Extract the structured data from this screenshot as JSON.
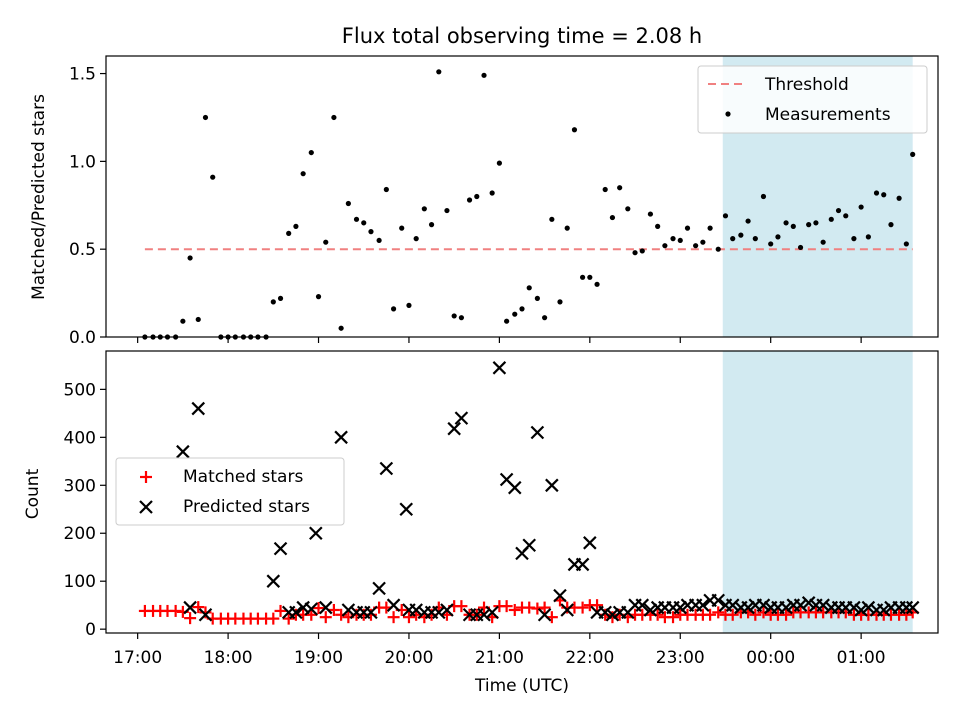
{
  "title": "Flux total observing time = 2.08 h",
  "shade_color": "#add8e6",
  "chart_data": [
    {
      "type": "scatter",
      "name": "ratio-panel",
      "ylabel": "Matched/Predicted stars",
      "xlim": [
        16.65,
        25.85
      ],
      "ylim": [
        0,
        1.6
      ],
      "yticks": [
        0.0,
        0.5,
        1.0,
        1.5
      ],
      "ytick_labels": [
        "0.0",
        "0.5",
        "1.0",
        "1.5"
      ],
      "shaded_region": [
        23.47,
        25.57
      ],
      "threshold": {
        "label": "Threshold",
        "value": 0.5,
        "x_range": [
          17.08,
          25.57
        ],
        "color": "#f08080"
      },
      "legend": {
        "location": "upper right",
        "entries": [
          "Threshold",
          "Measurements"
        ]
      },
      "series": [
        {
          "name": "Measurements",
          "color": "#000000",
          "x": [
            17.08,
            17.17,
            17.25,
            17.33,
            17.42,
            17.5,
            17.58,
            17.67,
            17.75,
            17.83,
            17.92,
            18.0,
            18.08,
            18.17,
            18.25,
            18.33,
            18.42,
            18.5,
            18.58,
            18.67,
            18.75,
            18.83,
            18.92,
            19.0,
            19.08,
            19.17,
            19.25,
            19.33,
            19.42,
            19.5,
            19.58,
            19.67,
            19.75,
            19.83,
            19.92,
            20.0,
            20.08,
            20.17,
            20.25,
            20.33,
            20.42,
            20.5,
            20.58,
            20.67,
            20.75,
            20.83,
            20.92,
            21.0,
            21.08,
            21.17,
            21.25,
            21.33,
            21.42,
            21.5,
            21.58,
            21.67,
            21.75,
            21.83,
            21.92,
            22.0,
            22.08,
            22.17,
            22.25,
            22.33,
            22.42,
            22.5,
            22.58,
            22.67,
            22.75,
            22.83,
            22.92,
            23.0,
            23.08,
            23.17,
            23.25,
            23.33,
            23.42,
            23.5,
            23.58,
            23.67,
            23.75,
            23.83,
            23.92,
            24.0,
            24.08,
            24.17,
            24.25,
            24.33,
            24.42,
            24.5,
            24.58,
            24.67,
            24.75,
            24.83,
            24.92,
            25.0,
            25.08,
            25.17,
            25.25,
            25.33,
            25.42,
            25.5,
            25.57
          ],
          "y": [
            0.0,
            0.0,
            0.0,
            0.0,
            0.0,
            0.09,
            0.45,
            0.1,
            1.25,
            0.91,
            0.0,
            0.0,
            0.0,
            0.0,
            0.0,
            0.0,
            0.0,
            0.2,
            0.22,
            0.59,
            0.63,
            0.93,
            1.05,
            0.23,
            0.54,
            1.25,
            0.05,
            0.76,
            0.67,
            0.65,
            0.6,
            0.55,
            0.84,
            0.16,
            0.62,
            0.18,
            0.56,
            0.73,
            0.64,
            1.51,
            0.72,
            0.12,
            0.11,
            0.78,
            0.8,
            1.49,
            0.82,
            0.99,
            0.09,
            0.13,
            0.16,
            0.28,
            0.22,
            0.11,
            0.67,
            0.2,
            0.62,
            1.18,
            0.34,
            0.34,
            0.3,
            0.84,
            0.68,
            0.85,
            0.73,
            0.48,
            0.49,
            0.7,
            0.63,
            0.52,
            0.56,
            0.55,
            0.62,
            0.52,
            0.54,
            0.62,
            0.5,
            0.69,
            0.56,
            0.58,
            0.66,
            0.56,
            0.8,
            0.53,
            0.57,
            0.65,
            0.63,
            0.51,
            0.64,
            0.65,
            0.54,
            0.67,
            0.72,
            0.69,
            0.56,
            0.74,
            0.57,
            0.82,
            0.81,
            0.64,
            0.79,
            0.53,
            1.04
          ]
        }
      ]
    },
    {
      "type": "scatter",
      "name": "count-panel",
      "xlabel": "Time (UTC)",
      "ylabel": "Count",
      "xlim": [
        16.65,
        25.85
      ],
      "ylim": [
        -8,
        580
      ],
      "yticks": [
        0,
        100,
        200,
        300,
        400,
        500
      ],
      "ytick_labels": [
        "0",
        "100",
        "200",
        "300",
        "400",
        "500"
      ],
      "xticks": [
        17,
        18,
        19,
        20,
        21,
        22,
        23,
        24,
        25
      ],
      "xtick_labels": [
        "17:00",
        "18:00",
        "19:00",
        "20:00",
        "21:00",
        "22:00",
        "23:00",
        "00:00",
        "01:00"
      ],
      "shaded_region": [
        23.47,
        25.57
      ],
      "legend": {
        "location": "center left",
        "entries": [
          "Matched stars",
          "Predicted stars"
        ]
      },
      "series": [
        {
          "name": "Matched stars",
          "marker": "+",
          "color": "#ff0000",
          "x": [
            17.08,
            17.17,
            17.25,
            17.33,
            17.42,
            17.5,
            17.58,
            17.67,
            17.75,
            17.83,
            17.92,
            18.0,
            18.08,
            18.17,
            18.25,
            18.33,
            18.42,
            18.5,
            18.58,
            18.67,
            18.75,
            18.83,
            18.92,
            19.0,
            19.08,
            19.17,
            19.25,
            19.33,
            19.42,
            19.5,
            19.58,
            19.67,
            19.75,
            19.83,
            19.92,
            20.0,
            20.08,
            20.17,
            20.25,
            20.33,
            20.42,
            20.5,
            20.58,
            20.67,
            20.75,
            20.83,
            20.92,
            21.0,
            21.08,
            21.17,
            21.25,
            21.33,
            21.42,
            21.5,
            21.58,
            21.67,
            21.75,
            21.83,
            21.92,
            22.0,
            22.08,
            22.17,
            22.25,
            22.33,
            22.42,
            22.5,
            22.58,
            22.67,
            22.75,
            22.83,
            22.92,
            23.0,
            23.08,
            23.17,
            23.25,
            23.33,
            23.42,
            23.5,
            23.58,
            23.67,
            23.75,
            23.83,
            23.92,
            24.0,
            24.08,
            24.17,
            24.25,
            24.33,
            24.42,
            24.5,
            24.58,
            24.67,
            24.75,
            24.83,
            24.92,
            25.0,
            25.08,
            25.17,
            25.25,
            25.33,
            25.42,
            25.5,
            25.57
          ],
          "y": [
            38,
            38,
            38,
            38,
            38,
            36,
            23,
            46,
            35,
            22,
            22,
            22,
            22,
            22,
            22,
            22,
            22,
            22,
            38,
            22,
            30,
            30,
            30,
            44,
            25,
            40,
            30,
            25,
            30,
            30,
            30,
            45,
            45,
            25,
            40,
            25,
            30,
            25,
            30,
            45,
            30,
            48,
            48,
            30,
            30,
            45,
            25,
            48,
            48,
            40,
            45,
            45,
            43,
            45,
            25,
            60,
            45,
            45,
            45,
            50,
            50,
            30,
            25,
            30,
            25,
            30,
            30,
            30,
            30,
            25,
            25,
            30,
            30,
            30,
            30,
            30,
            35,
            30,
            30,
            35,
            35,
            30,
            35,
            30,
            30,
            30,
            35,
            35,
            35,
            35,
            35,
            35,
            35,
            35,
            30,
            30,
            30,
            30,
            30,
            30,
            30,
            30,
            35
          ]
        },
        {
          "name": "Predicted stars",
          "marker": "x",
          "color": "#000000",
          "x": [
            17.5,
            17.58,
            17.67,
            17.75,
            18.5,
            18.58,
            18.67,
            18.75,
            18.83,
            18.92,
            18.97,
            19.08,
            19.25,
            19.33,
            19.42,
            19.5,
            19.58,
            19.67,
            19.75,
            19.83,
            19.97,
            20.0,
            20.08,
            20.17,
            20.25,
            20.33,
            20.42,
            20.5,
            20.58,
            20.67,
            20.75,
            20.83,
            20.92,
            21.0,
            21.08,
            21.17,
            21.25,
            21.33,
            21.42,
            21.5,
            21.58,
            21.67,
            21.75,
            21.83,
            21.92,
            22.0,
            22.08,
            22.17,
            22.25,
            22.33,
            22.42,
            22.5,
            22.58,
            22.67,
            22.75,
            22.83,
            22.92,
            23.0,
            23.08,
            23.17,
            23.25,
            23.33,
            23.42,
            23.5,
            23.58,
            23.67,
            23.75,
            23.83,
            23.92,
            24.0,
            24.08,
            24.17,
            24.25,
            24.33,
            24.42,
            24.5,
            24.58,
            24.67,
            24.75,
            24.83,
            24.92,
            25.0,
            25.08,
            25.17,
            25.25,
            25.33,
            25.42,
            25.5,
            25.57
          ],
          "y": [
            370,
            45,
            460,
            30,
            100,
            168,
            35,
            35,
            45,
            42,
            200,
            45,
            400,
            40,
            35,
            35,
            35,
            85,
            335,
            50,
            250,
            40,
            40,
            35,
            35,
            35,
            40,
            418,
            440,
            30,
            30,
            30,
            35,
            545,
            312,
            295,
            158,
            175,
            410,
            30,
            300,
            70,
            40,
            135,
            135,
            180,
            35,
            35,
            30,
            35,
            35,
            50,
            50,
            40,
            45,
            45,
            45,
            45,
            50,
            50,
            50,
            60,
            60,
            50,
            50,
            45,
            45,
            50,
            50,
            45,
            45,
            45,
            50,
            50,
            55,
            50,
            50,
            45,
            45,
            45,
            45,
            40,
            45,
            40,
            40,
            45,
            45,
            45,
            45
          ]
        }
      ]
    }
  ]
}
